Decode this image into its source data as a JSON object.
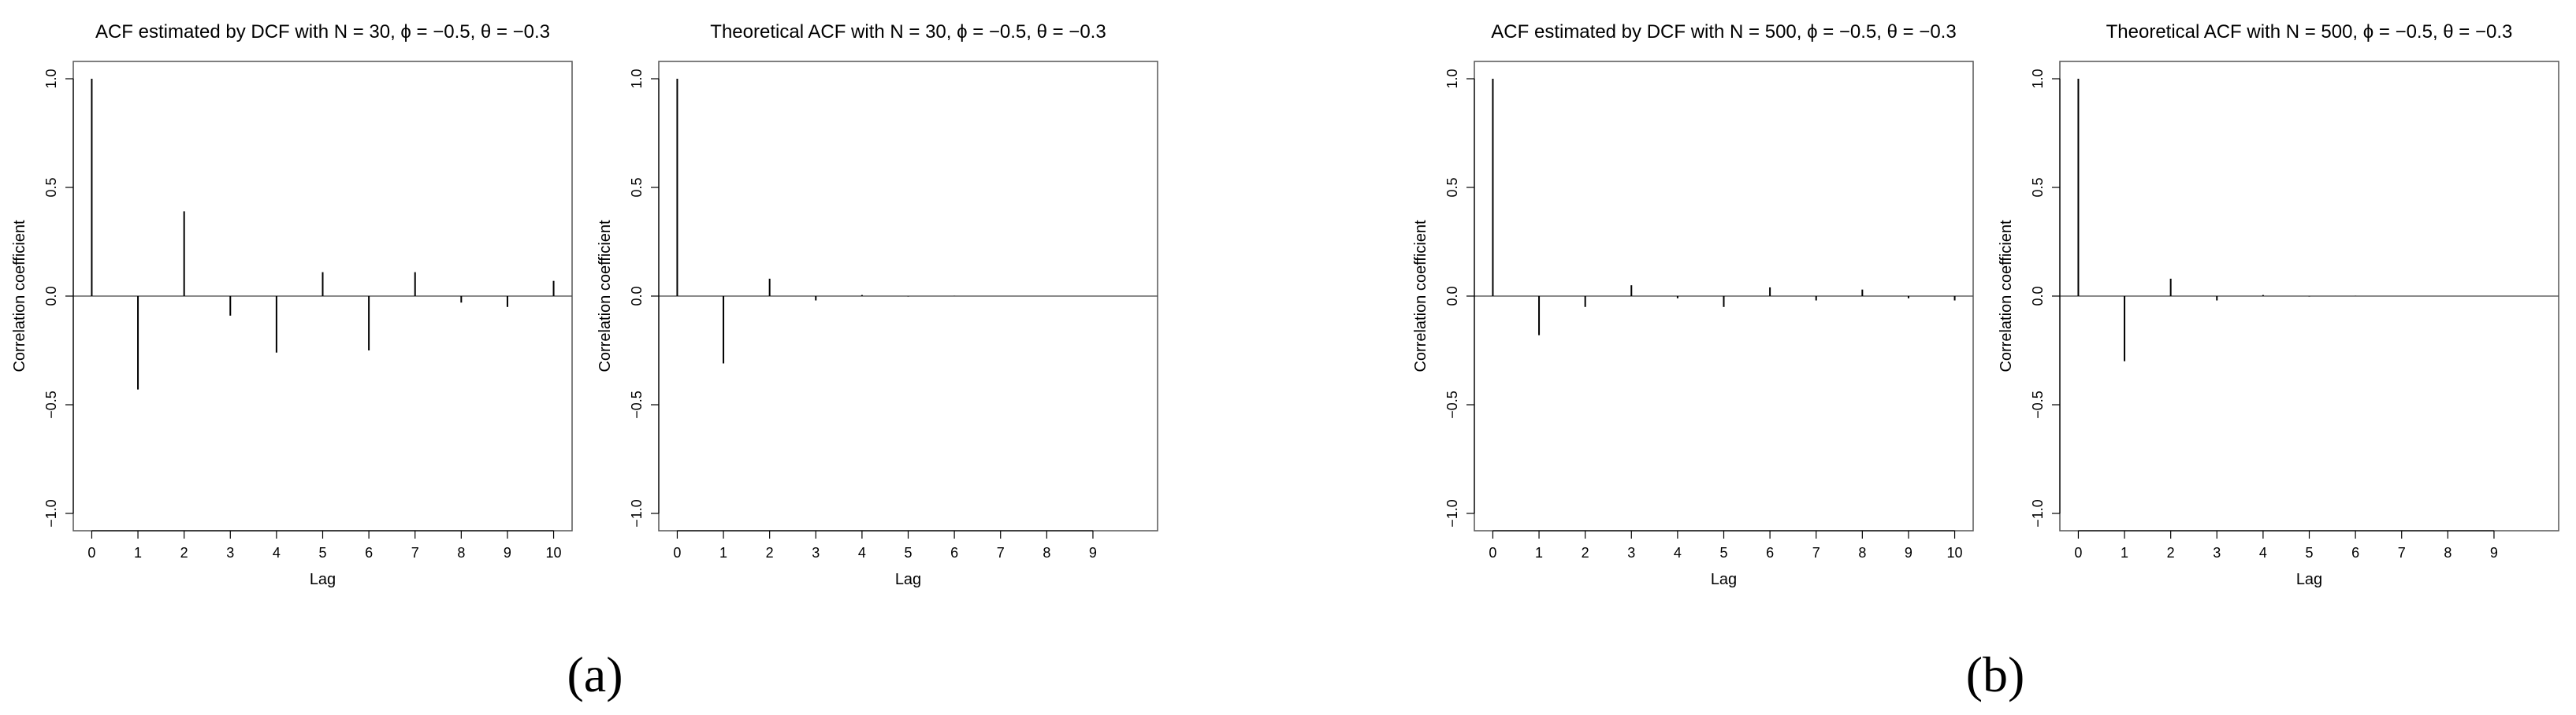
{
  "chart_data": [
    {
      "type": "bar",
      "title": "ACF estimated by DCF with N = 30, ϕ = −0.5, θ = −0.3",
      "xlabel": "Lag",
      "ylabel": "Correlation coefficient",
      "x": [
        0,
        1,
        2,
        3,
        4,
        5,
        6,
        7,
        8,
        9,
        10
      ],
      "values": [
        1.0,
        -0.43,
        0.39,
        -0.09,
        -0.26,
        0.11,
        -0.25,
        0.11,
        -0.03,
        -0.05,
        0.07
      ],
      "xlim": [
        -0.4,
        10.4
      ],
      "ylim": [
        -1.0,
        1.0
      ],
      "xticks": [
        "0",
        "1",
        "2",
        "3",
        "4",
        "5",
        "6",
        "7",
        "8",
        "9",
        "10"
      ],
      "yticks": [
        "−1.0",
        "−0.5",
        "0.0",
        "0.5",
        "1.0"
      ],
      "grid": false
    },
    {
      "type": "bar",
      "title": "Theoretical ACF with N = 30, ϕ = −0.5, θ = −0.3",
      "xlabel": "Lag",
      "ylabel": "Correlation coefficient",
      "x": [
        0,
        1,
        2,
        3,
        4,
        5,
        6,
        7,
        8,
        9
      ],
      "values": [
        1.0,
        -0.31,
        0.08,
        -0.02,
        0.005,
        -0.002,
        0.001,
        0.0,
        0.0,
        0.0
      ],
      "xlim": [
        -0.4,
        10.4
      ],
      "ylim": [
        -1.0,
        1.0
      ],
      "xticks": [
        "0",
        "1",
        "2",
        "3",
        "4",
        "5",
        "6",
        "7",
        "8",
        "9"
      ],
      "yticks": [
        "−1.0",
        "−0.5",
        "0.0",
        "0.5",
        "1.0"
      ],
      "grid": false
    },
    {
      "type": "bar",
      "title": "ACF estimated by DCF with N = 500, ϕ = −0.5, θ = −0.3",
      "xlabel": "Lag",
      "ylabel": "Correlation coefficient",
      "x": [
        0,
        1,
        2,
        3,
        4,
        5,
        6,
        7,
        8,
        9,
        10
      ],
      "values": [
        1.0,
        -0.18,
        -0.05,
        0.05,
        -0.01,
        -0.05,
        0.04,
        -0.02,
        0.03,
        -0.01,
        -0.02
      ],
      "xlim": [
        -0.4,
        10.4
      ],
      "ylim": [
        -1.0,
        1.0
      ],
      "xticks": [
        "0",
        "1",
        "2",
        "3",
        "4",
        "5",
        "6",
        "7",
        "8",
        "9",
        "10"
      ],
      "yticks": [
        "−1.0",
        "−0.5",
        "0.0",
        "0.5",
        "1.0"
      ],
      "grid": false
    },
    {
      "type": "bar",
      "title": "Theoretical ACF with N = 500, ϕ = −0.5, θ = −0.3",
      "xlabel": "Lag",
      "ylabel": "Correlation coefficient",
      "x": [
        0,
        1,
        2,
        3,
        4,
        5,
        6,
        7,
        8,
        9
      ],
      "values": [
        1.0,
        -0.3,
        0.08,
        -0.02,
        0.005,
        -0.002,
        0.001,
        0.0,
        0.0,
        0.0
      ],
      "xlim": [
        -0.4,
        10.4
      ],
      "ylim": [
        -1.0,
        1.0
      ],
      "xticks": [
        "0",
        "1",
        "2",
        "3",
        "4",
        "5",
        "6",
        "7",
        "8",
        "9"
      ],
      "yticks": [
        "−1.0",
        "−0.5",
        "0.0",
        "0.5",
        "1.0"
      ],
      "grid": false
    }
  ],
  "subfigure_labels": [
    "(a)",
    "(b)"
  ]
}
